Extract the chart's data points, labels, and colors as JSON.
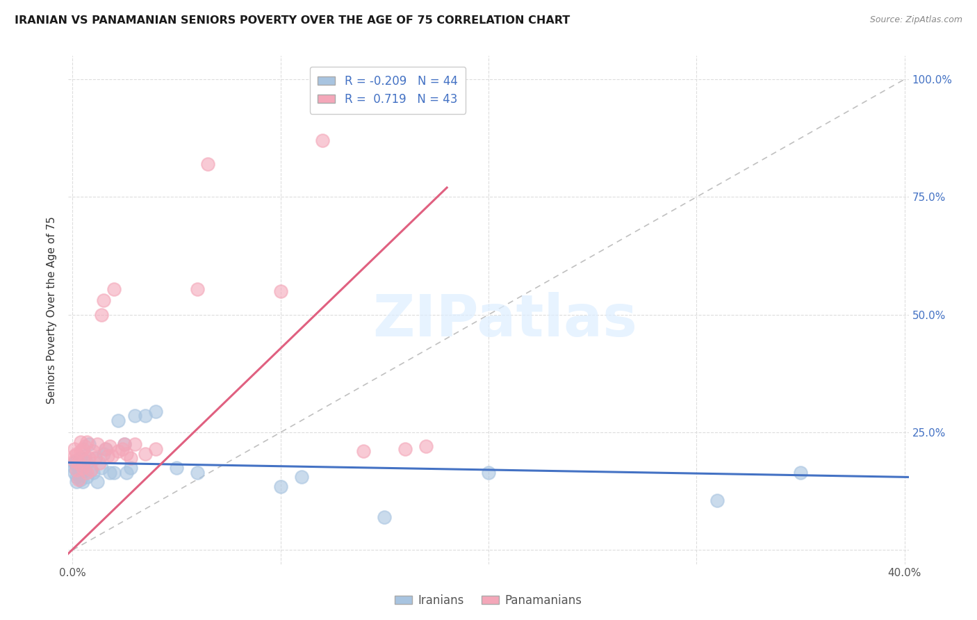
{
  "title": "IRANIAN VS PANAMANIAN SENIORS POVERTY OVER THE AGE OF 75 CORRELATION CHART",
  "source": "Source: ZipAtlas.com",
  "ylabel": "Seniors Poverty Over the Age of 75",
  "xlim": [
    -0.002,
    0.402
  ],
  "ylim": [
    -0.03,
    1.05
  ],
  "xticks": [
    0.0,
    0.1,
    0.2,
    0.3,
    0.4
  ],
  "xticklabels": [
    "0.0%",
    "",
    "",
    "",
    "40.0%"
  ],
  "yticks_right": [
    0.0,
    0.25,
    0.5,
    0.75,
    1.0
  ],
  "yticklabels_right": [
    "",
    "25.0%",
    "50.0%",
    "75.0%",
    "100.0%"
  ],
  "iranian_color": "#a8c4e0",
  "panamanian_color": "#f4a7b9",
  "iranian_line_color": "#4472c4",
  "panamanian_line_color": "#e06080",
  "ref_line_color": "#c0c0c0",
  "watermark": "ZIPatlas",
  "iranian_x": [
    0.001,
    0.001,
    0.001,
    0.002,
    0.002,
    0.002,
    0.002,
    0.003,
    0.003,
    0.003,
    0.004,
    0.004,
    0.004,
    0.005,
    0.005,
    0.006,
    0.006,
    0.007,
    0.007,
    0.008,
    0.009,
    0.01,
    0.011,
    0.012,
    0.014,
    0.015,
    0.016,
    0.018,
    0.02,
    0.022,
    0.025,
    0.026,
    0.028,
    0.03,
    0.035,
    0.04,
    0.05,
    0.06,
    0.1,
    0.11,
    0.15,
    0.2,
    0.31,
    0.35
  ],
  "iranian_y": [
    0.175,
    0.185,
    0.165,
    0.18,
    0.155,
    0.145,
    0.19,
    0.17,
    0.16,
    0.185,
    0.15,
    0.165,
    0.195,
    0.145,
    0.175,
    0.2,
    0.17,
    0.185,
    0.155,
    0.225,
    0.17,
    0.165,
    0.195,
    0.145,
    0.175,
    0.205,
    0.215,
    0.165,
    0.165,
    0.275,
    0.225,
    0.165,
    0.175,
    0.285,
    0.285,
    0.295,
    0.175,
    0.165,
    0.135,
    0.155,
    0.07,
    0.165,
    0.105,
    0.165
  ],
  "panamanian_x": [
    0.001,
    0.001,
    0.001,
    0.002,
    0.002,
    0.003,
    0.003,
    0.004,
    0.004,
    0.005,
    0.005,
    0.006,
    0.006,
    0.007,
    0.007,
    0.008,
    0.009,
    0.01,
    0.011,
    0.012,
    0.013,
    0.014,
    0.015,
    0.016,
    0.017,
    0.018,
    0.019,
    0.02,
    0.022,
    0.024,
    0.025,
    0.026,
    0.028,
    0.03,
    0.035,
    0.04,
    0.06,
    0.065,
    0.1,
    0.12,
    0.14,
    0.16,
    0.17
  ],
  "panamanian_y": [
    0.19,
    0.215,
    0.2,
    0.17,
    0.205,
    0.185,
    0.15,
    0.21,
    0.23,
    0.215,
    0.175,
    0.22,
    0.19,
    0.23,
    0.165,
    0.195,
    0.17,
    0.21,
    0.195,
    0.225,
    0.185,
    0.5,
    0.53,
    0.215,
    0.2,
    0.22,
    0.2,
    0.555,
    0.21,
    0.215,
    0.225,
    0.205,
    0.195,
    0.225,
    0.205,
    0.215,
    0.555,
    0.82,
    0.55,
    0.87,
    0.21,
    0.215,
    0.22
  ],
  "blue_line_x0": -0.002,
  "blue_line_x1": 0.402,
  "blue_line_y0": 0.186,
  "blue_line_y1": 0.155,
  "pink_line_x0": -0.005,
  "pink_line_x1": 0.18,
  "pink_line_y0": -0.02,
  "pink_line_y1": 0.77
}
